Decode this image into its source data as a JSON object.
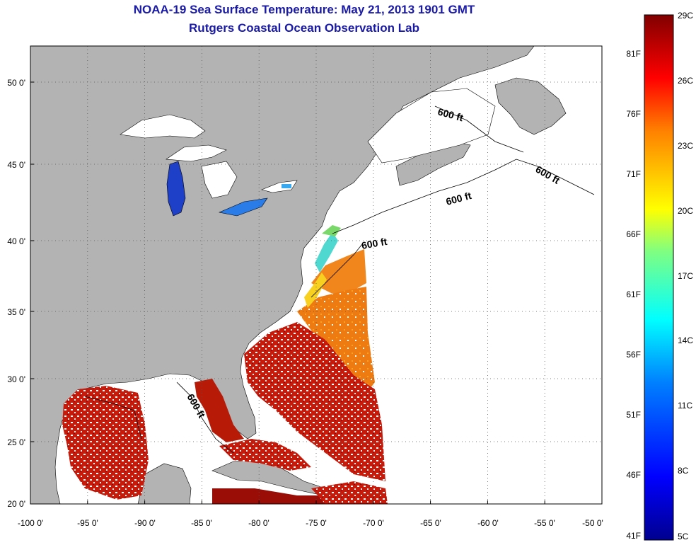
{
  "title": "NOAA-19 Sea Surface Temperature:  May 21, 2013 1901 GMT",
  "subtitle": "Rutgers Coastal Ocean Observation Lab",
  "map": {
    "lon_range": [
      -100,
      -50
    ],
    "lat_range": [
      20,
      52
    ],
    "x_ticks": [
      "-100 0'",
      "-95 0'",
      "-90 0'",
      "-85 0'",
      "-80 0'",
      "-75 0'",
      "-70 0'",
      "-65 0'",
      "-60 0'",
      "-55 0'",
      "-50 0'"
    ],
    "y_ticks": [
      "20 0'",
      "25 0'",
      "30 0'",
      "35 0'",
      "40 0'",
      "45 0'",
      "50 0'"
    ],
    "contour_labels": [
      "600 ft",
      "600 ft",
      "600 ft",
      "600 ft",
      "600 ft"
    ],
    "land_color": "#b3b3b3",
    "no_data_color": "#ffffff",
    "grid": "dotted"
  },
  "colorbar": {
    "celsius_labels": [
      "29C",
      "26C",
      "23C",
      "20C",
      "17C",
      "14C",
      "11C",
      "8C",
      "5C"
    ],
    "fahrenheit_labels": [
      "81F",
      "76F",
      "71F",
      "66F",
      "61F",
      "56F",
      "51F",
      "46F",
      "41F"
    ],
    "celsius_range": [
      5,
      29
    ],
    "colors": [
      "#00008f",
      "#0000ff",
      "#0080ff",
      "#00ffff",
      "#80ff80",
      "#ffff00",
      "#ff8000",
      "#ff0000",
      "#800000"
    ]
  }
}
